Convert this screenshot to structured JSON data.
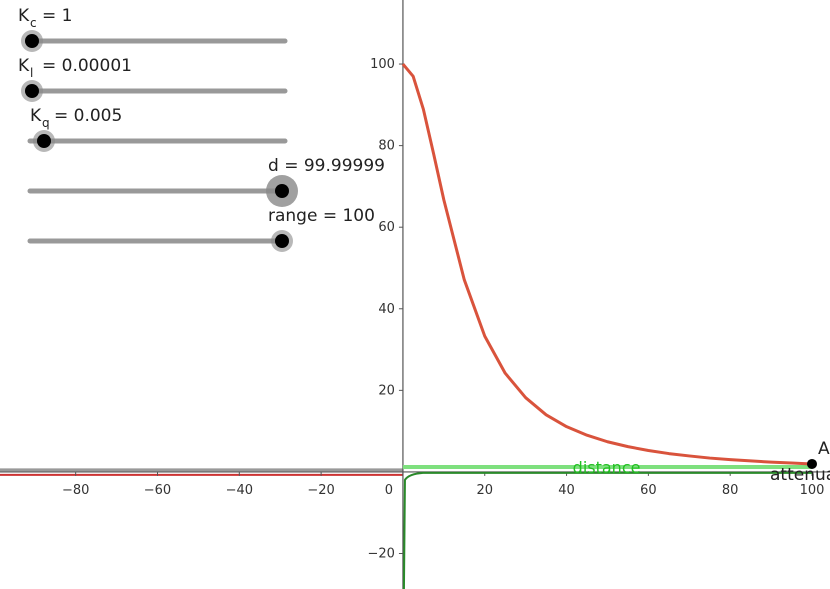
{
  "sliders": [
    {
      "symbol": "K",
      "subscript": "c",
      "text": "= 1"
    },
    {
      "symbol": "K",
      "subscript": "l",
      "text": "= 0.00001"
    },
    {
      "symbol": "K",
      "subscript": "q",
      "text": "= 0.005"
    },
    {
      "text": "d = 99.99999"
    },
    {
      "text": "range = 100"
    }
  ],
  "chart_data": {
    "type": "line",
    "xlim": [
      -98.5,
      104.4
    ],
    "ylim": [
      -28.7,
      115.7
    ],
    "xticks": [
      {
        "value": -80,
        "label": "−80"
      },
      {
        "value": -60,
        "label": "−60"
      },
      {
        "value": -40,
        "label": "−40"
      },
      {
        "value": -20,
        "label": "−20"
      },
      0,
      20,
      40,
      60,
      80,
      100
    ],
    "yticks": [
      {
        "value": -20,
        "label": "−20"
      },
      20,
      40,
      60,
      80,
      100
    ],
    "series": [
      {
        "color": "#d9533c",
        "x": [
          0,
          2.5,
          5,
          7.5,
          10,
          15,
          20,
          25,
          30,
          35,
          40,
          45,
          50,
          55,
          60,
          65,
          70,
          75,
          80,
          85,
          90,
          95,
          100
        ],
        "values": [
          100,
          97,
          88.9,
          78,
          66.7,
          47.1,
          33.3,
          24.2,
          18.2,
          14,
          11.1,
          9,
          7.4,
          6.2,
          5.26,
          4.5,
          3.92,
          3.4,
          3.03,
          2.7,
          2.41,
          2.2,
          1.96
        ]
      }
    ],
    "point": {
      "label": "A",
      "x": 100,
      "y": 1.96
    },
    "labels": {
      "distance": "distance",
      "attenuation": "attenua"
    }
  }
}
